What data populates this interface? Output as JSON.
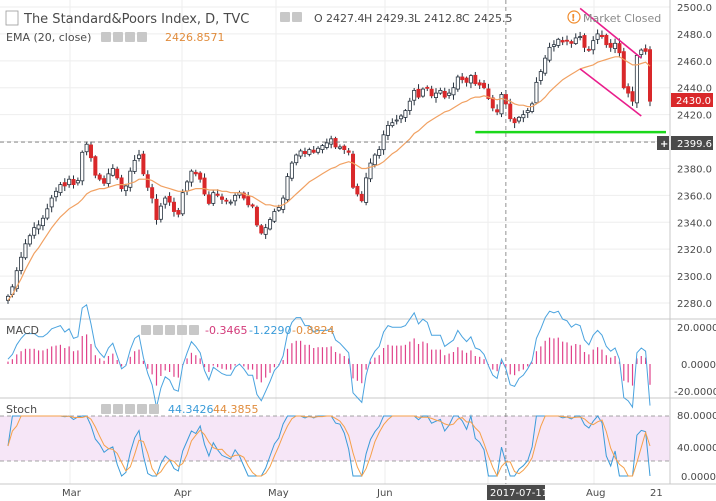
{
  "header": {
    "symbol_title": "The Standard&Poors Index, D, TVC",
    "ohlc": {
      "o_label": "O",
      "o": "2427.4",
      "h_label": "H",
      "h": "2429.3",
      "l_label": "L",
      "l": "2412.8",
      "c_label": "C",
      "c": "2425.5"
    },
    "market_status": "Market Closed",
    "ema_label": "EMA (20, close)",
    "ema_value": "2426.8571"
  },
  "price_axis": {
    "ticks": [
      "2500.0",
      "2480.0",
      "2460.0",
      "2440.0",
      "2420.0",
      "2400.0",
      "2380.0",
      "2360.0",
      "2340.0",
      "2320.0",
      "2300.0",
      "2280.0"
    ],
    "last_price_tag": "2430.0",
    "crosshair_price_tag": "2399.6",
    "crosshair_plus": "+"
  },
  "macd_panel": {
    "label": "MACD",
    "values": [
      "-0.3465",
      "-1.2290",
      "-0.8824"
    ],
    "axis": [
      "20.0000",
      "0.0000",
      "-20.0000"
    ]
  },
  "stoch_panel": {
    "label": "Stoch",
    "values": [
      "44.3426",
      "44.3855"
    ],
    "axis": [
      "80.0000",
      "40.0000",
      "0.0000"
    ]
  },
  "time_axis": {
    "labels": [
      "Mar",
      "Apr",
      "May",
      "Jun",
      "Aug",
      "21"
    ],
    "crosshair_date": "2017-07-11"
  },
  "colors": {
    "up": "#26313d",
    "down": "#d9282a",
    "ema": "#f1a162",
    "channel": "#e91e8c",
    "support": "#1bd81b",
    "macd_line": "#4aa3df",
    "macd_hist": "#e0428a",
    "stoch_k": "#3a9bd9",
    "stoch_d": "#f5a04a",
    "stoch_band": "#f6e6f7",
    "status": "#f08c2e",
    "tag_price": "#d9282a",
    "tag_cross": "#4a4a4a"
  },
  "chart_data": {
    "type": "candlestick",
    "title": "The Standard&Poors Index, D, TVC",
    "ylim": [
      2270,
      2502
    ],
    "date_labels": [
      "Mar",
      "Apr",
      "May",
      "Jun",
      "Aug",
      "21"
    ],
    "close": [
      2285,
      2292,
      2304,
      2314,
      2324,
      2330,
      2336,
      2338,
      2343,
      2350,
      2358,
      2363,
      2368,
      2367,
      2372,
      2368,
      2371,
      2392,
      2398,
      2388,
      2375,
      2372,
      2369,
      2376,
      2380,
      2373,
      2365,
      2367,
      2378,
      2386,
      2390,
      2376,
      2366,
      2358,
      2342,
      2352,
      2358,
      2355,
      2348,
      2346,
      2362,
      2370,
      2378,
      2376,
      2372,
      2361,
      2354,
      2362,
      2360,
      2357,
      2356,
      2355,
      2360,
      2362,
      2358,
      2353,
      2352,
      2338,
      2332,
      2336,
      2342,
      2348,
      2351,
      2358,
      2374,
      2384,
      2390,
      2393,
      2391,
      2394,
      2392,
      2395,
      2397,
      2399,
      2402,
      2396,
      2396,
      2394,
      2392,
      2366,
      2361,
      2356,
      2373,
      2384,
      2390,
      2394,
      2405,
      2412,
      2414,
      2416,
      2419,
      2423,
      2430,
      2438,
      2433,
      2439,
      2440,
      2434,
      2436,
      2438,
      2433,
      2436,
      2440,
      2448,
      2446,
      2444,
      2449,
      2443,
      2442,
      2440,
      2432,
      2425,
      2422,
      2435,
      2428,
      2417,
      2414,
      2418,
      2420,
      2423,
      2428,
      2444,
      2452,
      2462,
      2470,
      2472,
      2476,
      2474,
      2475,
      2473,
      2477,
      2478,
      2470,
      2468,
      2475,
      2480,
      2478,
      2472,
      2470,
      2473,
      2466,
      2440,
      2436,
      2430,
      2464,
      2468,
      2467,
      2430
    ],
    "ema": [
      2282,
      2286,
      2292,
      2298,
      2305,
      2311,
      2317,
      2321,
      2326,
      2331,
      2336,
      2340,
      2344,
      2347,
      2350,
      2352,
      2354,
      2357,
      2361,
      2363,
      2364,
      2365,
      2365,
      2366,
      2367,
      2368,
      2368,
      2368,
      2369,
      2370,
      2372,
      2372,
      2372,
      2371,
      2369,
      2367,
      2366,
      2365,
      2364,
      2363,
      2363,
      2363,
      2364,
      2365,
      2365,
      2365,
      2364,
      2364,
      2364,
      2363,
      2363,
      2362,
      2362,
      2362,
      2361,
      2360,
      2359,
      2357,
      2355,
      2353,
      2353,
      2352,
      2352,
      2353,
      2355,
      2358,
      2361,
      2364,
      2367,
      2370,
      2372,
      2374,
      2376,
      2378,
      2380,
      2381,
      2383,
      2384,
      2385,
      2384,
      2382,
      2380,
      2380,
      2381,
      2382,
      2383,
      2385,
      2388,
      2391,
      2393,
      2396,
      2399,
      2402,
      2406,
      2408,
      2411,
      2414,
      2416,
      2418,
      2420,
      2422,
      2423,
      2425,
      2427,
      2429,
      2430,
      2432,
      2433,
      2433,
      2434,
      2433,
      2432,
      2431,
      2432,
      2431,
      2430,
      2428,
      2427,
      2427,
      2426,
      2426,
      2428,
      2430,
      2433,
      2437,
      2440,
      2443,
      2446,
      2448,
      2450,
      2452,
      2454,
      2455,
      2456,
      2457,
      2459,
      2460,
      2461,
      2462,
      2463,
      2463,
      2461,
      2459,
      2457,
      2457,
      2458,
      2459,
      2456
    ],
    "channel_upper": {
      "from": [
        2480,
        2499
      ],
      "to": [
        2494,
        2462
      ]
    },
    "channel_lower": {
      "from": [
        2480,
        2454
      ],
      "to": [
        2494,
        2419
      ]
    },
    "support_level": 2407,
    "crosshair_price": 2399.6,
    "last_price": 2430.0
  }
}
